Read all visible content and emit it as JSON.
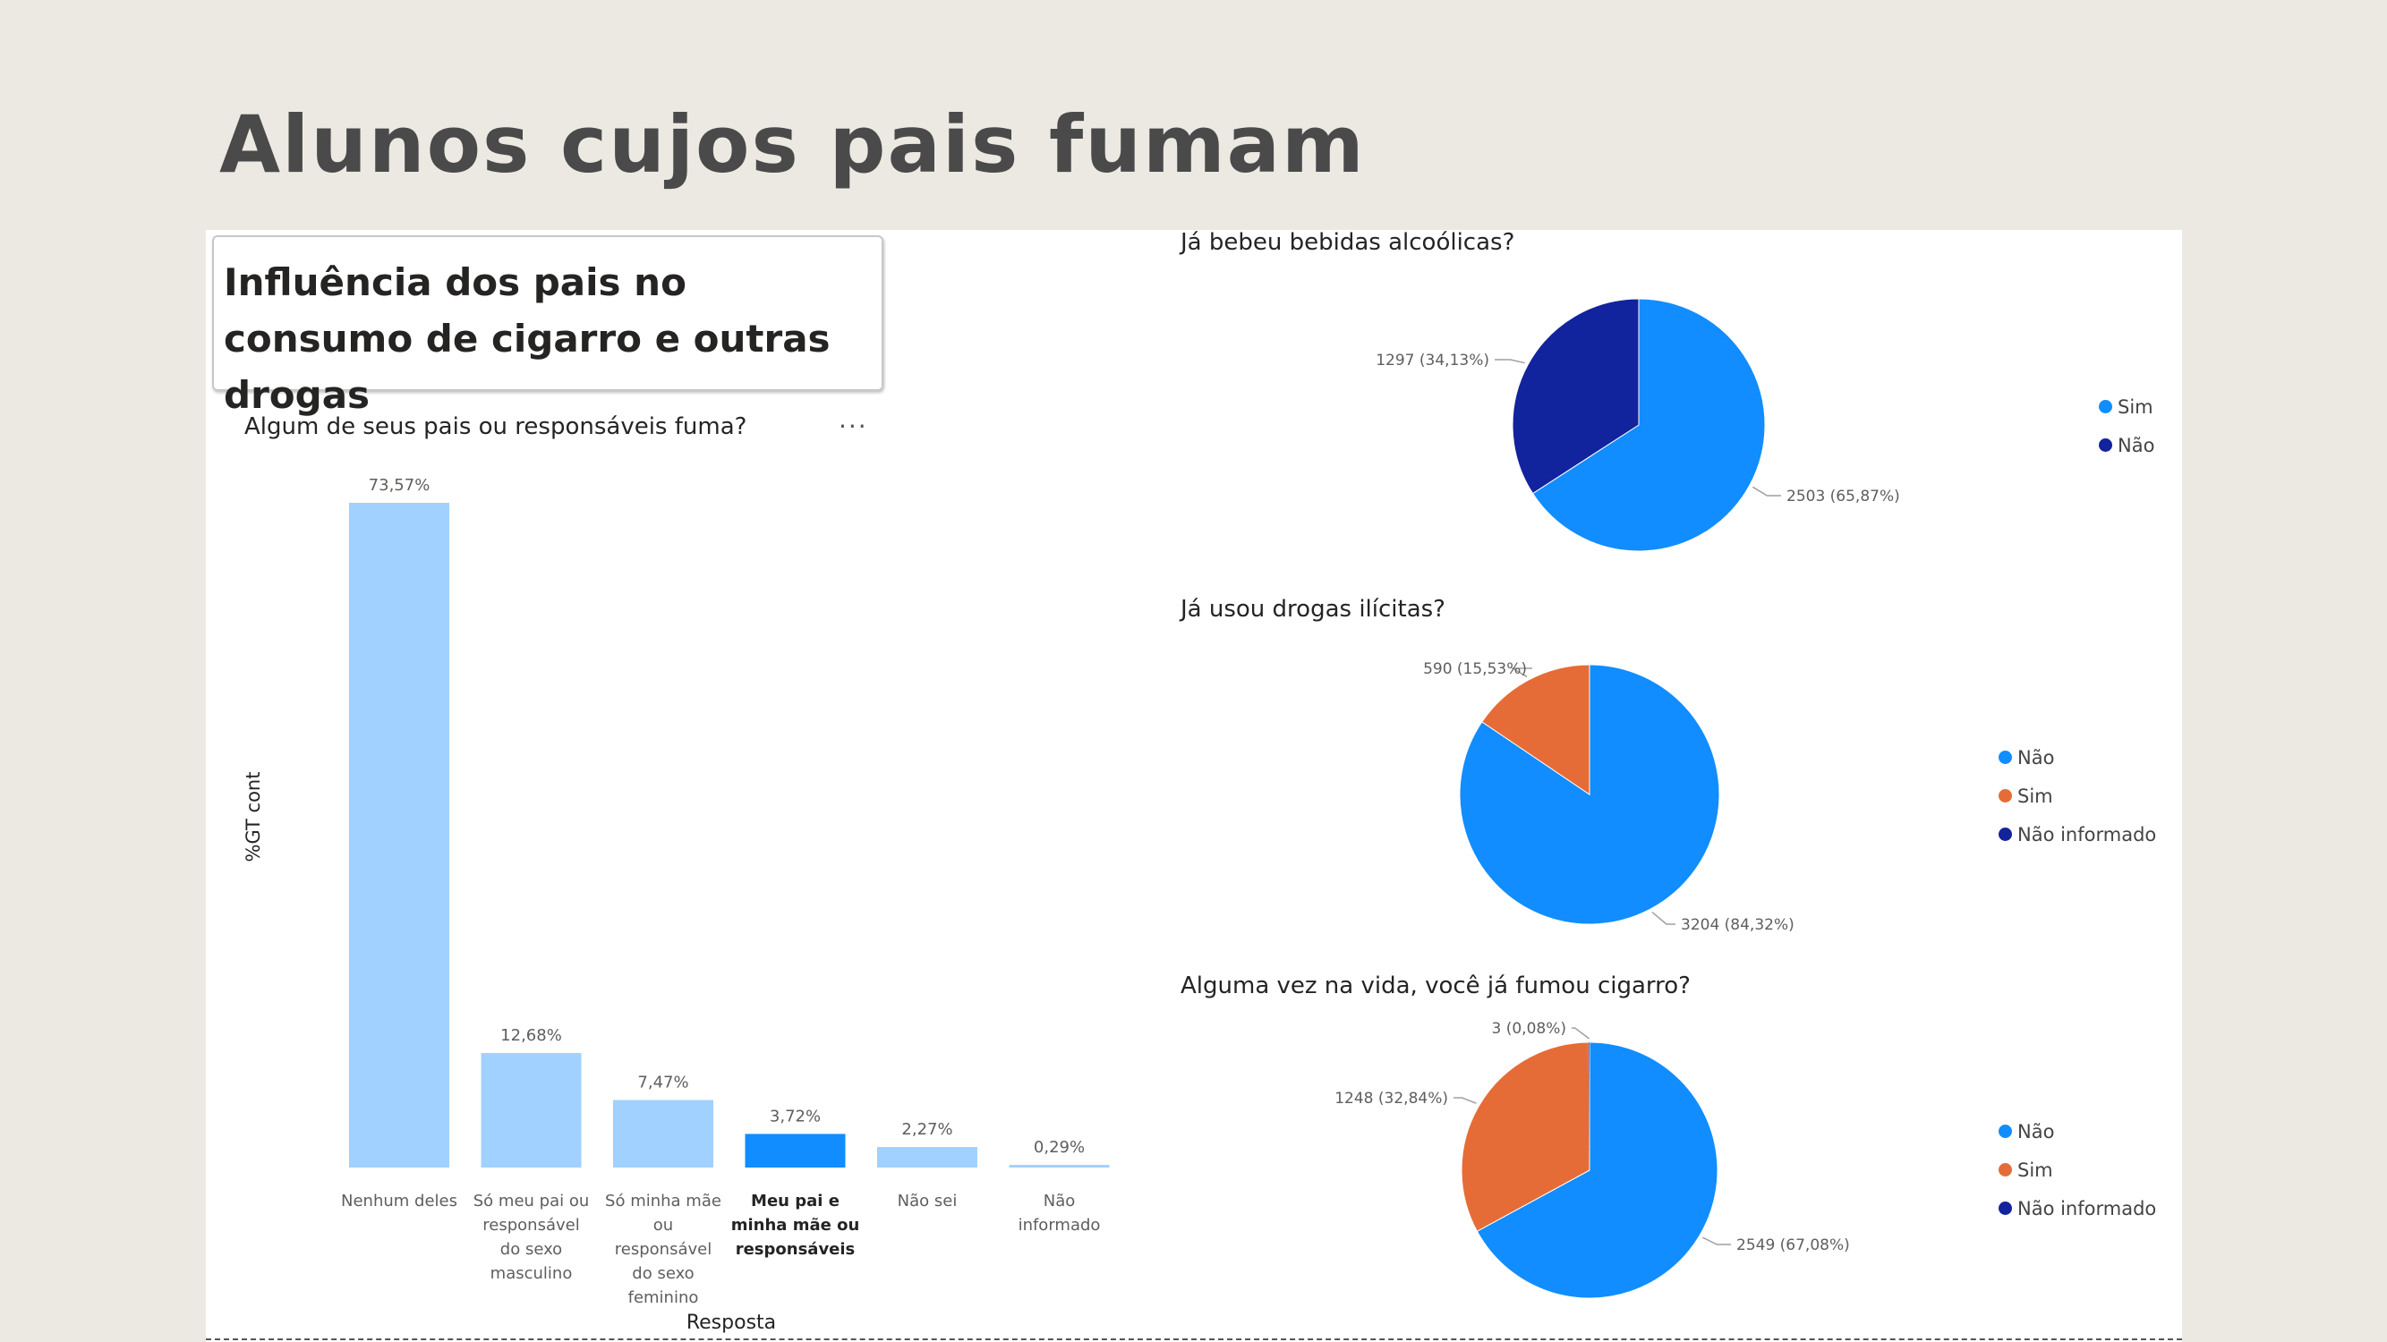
{
  "slide": {
    "title": "Alunos cujos pais fumam"
  },
  "report": {
    "header": "Influência dos pais no consumo de cigarro e outras drogas",
    "more_options": "..."
  },
  "chart_data": [
    {
      "type": "bar",
      "title": "Algum de seus pais ou responsáveis fuma?",
      "xlabel": "Resposta",
      "ylabel": "%GT cont",
      "categories": [
        "Nenhum deles",
        "Só meu pai ou responsável do sexo masculino",
        "Só minha mãe ou responsável do sexo feminino",
        "Meu pai e minha mãe ou responsáveis",
        "Não sei",
        "Não informado"
      ],
      "category_lines": [
        [
          "Nenhum deles"
        ],
        [
          "Só meu pai ou",
          "responsável",
          "do sexo",
          "masculino"
        ],
        [
          "Só minha mãe",
          "ou",
          "responsável",
          "do sexo",
          "feminino"
        ],
        [
          "Meu pai e",
          "minha mãe ou",
          "responsáveis"
        ],
        [
          "Não sei"
        ],
        [
          "Não",
          "informado"
        ]
      ],
      "values": [
        73.57,
        12.68,
        7.47,
        3.72,
        2.27,
        0.29
      ],
      "value_labels": [
        "73,57%",
        "12,68%",
        "7,47%",
        "3,72%",
        "2,27%",
        "0,29%"
      ],
      "highlighted_index": 3,
      "colors": {
        "bar": "#a0d1ff",
        "highlight": "#118dff"
      },
      "ylim": [
        0,
        73.57
      ],
      "grid": false
    },
    {
      "type": "pie",
      "title": "Já bebeu bebidas alcoólicas?",
      "slices": [
        {
          "label": "Sim",
          "value": 2503,
          "data_label": "2503 (65,87%)",
          "color": "#118dff"
        },
        {
          "label": "Não",
          "value": 1297,
          "data_label": "1297 (34,13%)",
          "color": "#12239e"
        }
      ],
      "legend": [
        {
          "label": "Sim",
          "color": "#118dff"
        },
        {
          "label": "Não",
          "color": "#12239e"
        }
      ],
      "legend_position": "right"
    },
    {
      "type": "pie",
      "title": "Já usou drogas ilícitas?",
      "slices": [
        {
          "label": "Não",
          "value": 3204,
          "data_label": "3204 (84,32%)",
          "color": "#118dff"
        },
        {
          "label": "Sim",
          "value": 590,
          "data_label": "590 (15,53%)",
          "color": "#e66c37"
        }
      ],
      "legend": [
        {
          "label": "Não",
          "color": "#118dff"
        },
        {
          "label": "Sim",
          "color": "#e66c37"
        },
        {
          "label": "Não informado",
          "color": "#12239e"
        }
      ],
      "legend_position": "right"
    },
    {
      "type": "pie",
      "title": "Alguma vez na vida, você já fumou cigarro?",
      "slices": [
        {
          "label": "Não",
          "value": 2549,
          "data_label": "2549 (67,08%)",
          "color": "#118dff"
        },
        {
          "label": "Sim",
          "value": 1248,
          "data_label": "1248 (32,84%)",
          "color": "#e66c37"
        },
        {
          "label": "Não informado",
          "value": 3,
          "data_label": "3 (0,08%)",
          "color": "#12239e"
        }
      ],
      "legend": [
        {
          "label": "Não",
          "color": "#118dff"
        },
        {
          "label": "Sim",
          "color": "#e66c37"
        },
        {
          "label": "Não informado",
          "color": "#12239e"
        }
      ],
      "legend_position": "right"
    }
  ]
}
